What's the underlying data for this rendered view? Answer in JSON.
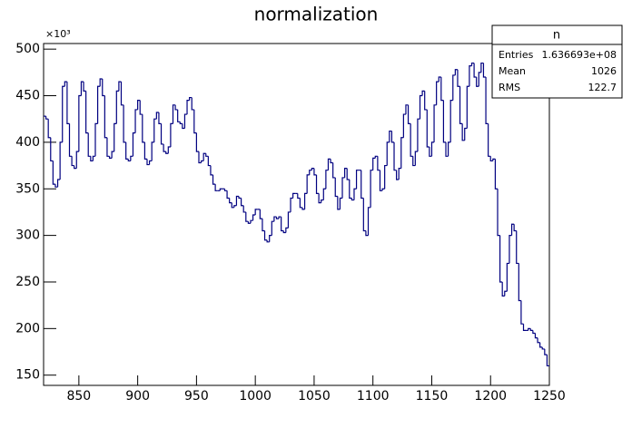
{
  "chart_data": {
    "type": "histogram",
    "title": "normalization",
    "y_exponent_label": "×10³",
    "color": "#000080",
    "bins": [
      820,
      822,
      824,
      826,
      828,
      830,
      832,
      834,
      836,
      838,
      840,
      842,
      844,
      846,
      848,
      850,
      852,
      854,
      856,
      858,
      860,
      862,
      864,
      866,
      868,
      870,
      872,
      874,
      876,
      878,
      880,
      882,
      884,
      886,
      888,
      890,
      892,
      894,
      896,
      898,
      900,
      902,
      904,
      906,
      908,
      910,
      912,
      914,
      916,
      918,
      920,
      922,
      924,
      926,
      928,
      930,
      932,
      934,
      936,
      938,
      940,
      942,
      944,
      946,
      948,
      950,
      952,
      954,
      956,
      958,
      960,
      962,
      964,
      966,
      968,
      970,
      972,
      974,
      976,
      978,
      980,
      982,
      984,
      986,
      988,
      990,
      992,
      994,
      996,
      998,
      1000,
      1002,
      1004,
      1006,
      1008,
      1010,
      1012,
      1014,
      1016,
      1018,
      1020,
      1022,
      1024,
      1026,
      1028,
      1030,
      1032,
      1034,
      1036,
      1038,
      1040,
      1042,
      1044,
      1046,
      1048,
      1050,
      1052,
      1054,
      1056,
      1058,
      1060,
      1062,
      1064,
      1066,
      1068,
      1070,
      1072,
      1074,
      1076,
      1078,
      1080,
      1082,
      1084,
      1086,
      1088,
      1090,
      1092,
      1094,
      1096,
      1098,
      1100,
      1102,
      1104,
      1106,
      1108,
      1110,
      1112,
      1114,
      1116,
      1118,
      1120,
      1122,
      1124,
      1126,
      1128,
      1130,
      1132,
      1134,
      1136,
      1138,
      1140,
      1142,
      1144,
      1146,
      1148,
      1150,
      1152,
      1154,
      1156,
      1158,
      1160,
      1162,
      1164,
      1166,
      1168,
      1170,
      1172,
      1174,
      1176,
      1178,
      1180,
      1182,
      1184,
      1186,
      1188,
      1190,
      1192,
      1194,
      1196,
      1198,
      1200,
      1202,
      1204,
      1206,
      1208,
      1210,
      1212,
      1214,
      1216,
      1218,
      1220,
      1222,
      1224,
      1226,
      1228,
      1230,
      1232,
      1234,
      1236,
      1238,
      1240,
      1242,
      1244,
      1246,
      1248,
      1250
    ],
    "counts": [
      428,
      425,
      405,
      380,
      355,
      352,
      360,
      400,
      460,
      465,
      420,
      385,
      375,
      372,
      390,
      450,
      465,
      455,
      410,
      385,
      380,
      385,
      420,
      460,
      468,
      450,
      405,
      385,
      383,
      390,
      420,
      455,
      465,
      440,
      400,
      382,
      380,
      385,
      410,
      435,
      445,
      430,
      400,
      382,
      376,
      380,
      400,
      425,
      432,
      420,
      398,
      390,
      388,
      395,
      420,
      440,
      435,
      422,
      420,
      415,
      430,
      445,
      448,
      435,
      410,
      390,
      378,
      380,
      388,
      385,
      375,
      365,
      355,
      348,
      348,
      350,
      350,
      348,
      340,
      335,
      330,
      332,
      342,
      340,
      332,
      325,
      315,
      313,
      316,
      322,
      328,
      328,
      318,
      305,
      295,
      293,
      300,
      315,
      320,
      318,
      320,
      305,
      303,
      308,
      325,
      340,
      345,
      345,
      340,
      330,
      328,
      345,
      365,
      370,
      372,
      365,
      345,
      335,
      338,
      350,
      370,
      382,
      378,
      362,
      342,
      328,
      340,
      362,
      372,
      360,
      340,
      338,
      350,
      370,
      370,
      340,
      305,
      300,
      330,
      370,
      383,
      385,
      370,
      348,
      350,
      375,
      400,
      412,
      400,
      370,
      360,
      372,
      405,
      430,
      440,
      420,
      385,
      375,
      390,
      425,
      450,
      455,
      435,
      395,
      385,
      400,
      440,
      465,
      470,
      445,
      400,
      385,
      400,
      445,
      472,
      478,
      460,
      420,
      402,
      415,
      460,
      482,
      485,
      470,
      460,
      475,
      485,
      470,
      420,
      385,
      380,
      382,
      350,
      300,
      250,
      235,
      240,
      270,
      300,
      312,
      305,
      270,
      230,
      205,
      198,
      198,
      200,
      198,
      195,
      190,
      185,
      180,
      178,
      172,
      160
    ],
    "xlim": [
      820,
      1250
    ],
    "xticks": [
      850,
      900,
      950,
      1000,
      1050,
      1100,
      1150,
      1200,
      1250
    ],
    "ylim": [
      139,
      506
    ],
    "yticks": [
      150,
      200,
      250,
      300,
      350,
      400,
      450,
      500
    ],
    "stats": {
      "name": "n",
      "rows": [
        [
          "Entries",
          "1.636693e+08"
        ],
        [
          "Mean",
          "1026"
        ],
        [
          "RMS",
          "122.7"
        ]
      ]
    }
  }
}
